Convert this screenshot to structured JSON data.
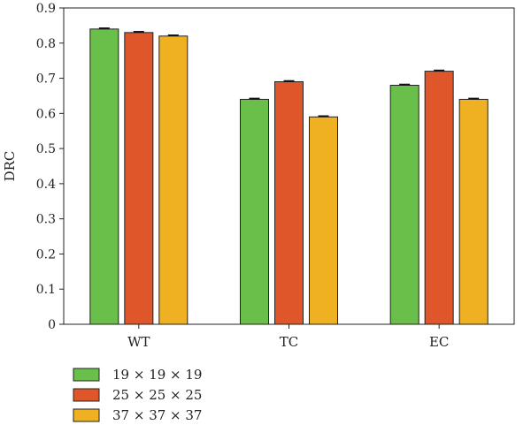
{
  "chart_data": {
    "type": "bar",
    "title": "",
    "xlabel": "",
    "ylabel": "DRC",
    "ylim": [
      0,
      0.9
    ],
    "yticks": [
      "0",
      "0.1",
      "0.2",
      "0.3",
      "0.4",
      "0.5",
      "0.6",
      "0.7",
      "0.8",
      "0.9"
    ],
    "categories": [
      "WT",
      "TC",
      "EC"
    ],
    "series": [
      {
        "name": "19 × 19 × 19",
        "color": "#6abf4b",
        "values": [
          0.84,
          0.64,
          0.68
        ],
        "errors": [
          0.002,
          0.002,
          0.002
        ]
      },
      {
        "name": "25 × 25 × 25",
        "color": "#e0562b",
        "values": [
          0.83,
          0.69,
          0.72
        ],
        "errors": [
          0.002,
          0.002,
          0.002
        ]
      },
      {
        "name": "37 × 37 × 37",
        "color": "#efb122",
        "values": [
          0.82,
          0.59,
          0.64
        ],
        "errors": [
          0.002,
          0.002,
          0.002
        ]
      }
    ],
    "legend_position": "bottom-left",
    "grid": false
  }
}
